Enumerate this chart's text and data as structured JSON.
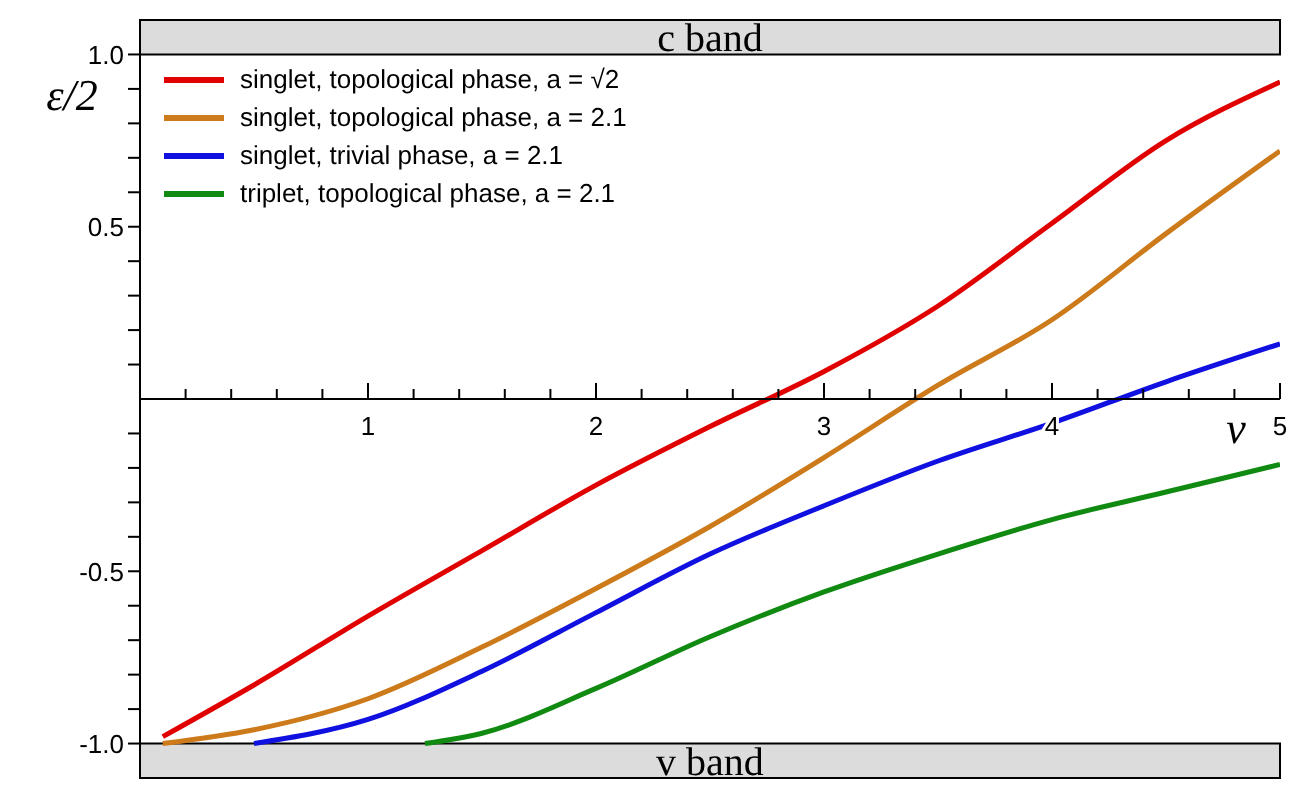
{
  "chart_data": {
    "type": "line",
    "xlabel": "v",
    "ylabel": "ε/2",
    "legend": "top left",
    "marker": "none",
    "line_style": "solid",
    "xlim": [
      0,
      5
    ],
    "ylim": [
      -1.1,
      1.1
    ],
    "xticks": [
      {
        "value": 0.2,
        "label": null
      },
      {
        "value": 0.4,
        "label": null
      },
      {
        "value": 0.6,
        "label": null
      },
      {
        "value": 0.8,
        "label": null
      },
      1,
      {
        "value": 1.2,
        "label": null
      },
      {
        "value": 1.4,
        "label": null
      },
      {
        "value": 1.6,
        "label": null
      },
      {
        "value": 1.8,
        "label": null
      },
      2,
      {
        "value": 2.2,
        "label": null
      },
      {
        "value": 2.4,
        "label": null
      },
      {
        "value": 2.6,
        "label": null
      },
      {
        "value": 2.8,
        "label": null
      },
      3,
      {
        "value": 3.2,
        "label": null
      },
      {
        "value": 3.4,
        "label": null
      },
      {
        "value": 3.6,
        "label": null
      },
      {
        "value": 3.8,
        "label": null
      },
      4,
      {
        "value": 4.2,
        "label": null
      },
      {
        "value": 4.4,
        "label": null
      },
      {
        "value": 4.6,
        "label": null
      },
      {
        "value": 4.8,
        "label": null
      },
      5
    ],
    "yticks": [
      {
        "value": -1,
        "label": "-1.0"
      },
      {
        "value": -0.9,
        "label": null
      },
      {
        "value": -0.8,
        "label": null
      },
      {
        "value": -0.7,
        "label": null
      },
      {
        "value": -0.6,
        "label": null
      },
      -0.5,
      {
        "value": -0.4,
        "label": null
      },
      {
        "value": -0.3,
        "label": null
      },
      {
        "value": -0.2,
        "label": null
      },
      {
        "value": -0.1,
        "label": null
      },
      {
        "value": 0.1,
        "label": null
      },
      {
        "value": 0.2,
        "label": null
      },
      {
        "value": 0.3,
        "label": null
      },
      {
        "value": 0.4,
        "label": null
      },
      0.5,
      {
        "value": 0.6,
        "label": null
      },
      {
        "value": 0.7,
        "label": null
      },
      {
        "value": 0.8,
        "label": null
      },
      {
        "value": 0.9,
        "label": null
      },
      {
        "value": 1,
        "label": "1.0"
      }
    ],
    "bands": [
      {
        "axis": "y",
        "from": 1,
        "to": 1.1,
        "label": "c band",
        "color": "#dcdcdc"
      },
      {
        "axis": "y",
        "from": -1.1,
        "to": -1,
        "label": "v band",
        "color": "#dcdcdc"
      }
    ],
    "series": [
      {
        "name": "singlet, topological phase, a = √2",
        "color": "#e00000",
        "x": [
          0.1,
          0.5,
          1,
          1.5,
          2,
          2.5,
          3,
          3.5,
          4,
          4.5,
          5
        ],
        "values": [
          -0.98,
          -0.83,
          -0.63,
          -0.44,
          -0.25,
          -0.08,
          0.08,
          0.27,
          0.51,
          0.75,
          0.92
        ]
      },
      {
        "name": "singlet, topological phase, a = 2.1",
        "color": "#cc7a1a",
        "x": [
          0.1,
          0.5,
          1,
          1.5,
          2,
          2.5,
          3,
          3.5,
          4,
          4.5,
          5
        ],
        "values": [
          -1,
          -0.96,
          -0.87,
          -0.72,
          -0.55,
          -0.37,
          -0.17,
          0.04,
          0.23,
          0.48,
          0.72
        ]
      },
      {
        "name": "singlet, trivial phase, a = 2.1",
        "color": "#1010e0",
        "x": [
          0.5,
          1,
          1.5,
          2,
          2.5,
          3,
          3.5,
          4,
          4.5,
          5
        ],
        "values": [
          -1,
          -0.93,
          -0.79,
          -0.62,
          -0.45,
          -0.31,
          -0.18,
          -0.07,
          0.05,
          0.16
        ]
      },
      {
        "name": "triplet, topological phase, a = 2.1",
        "color": "#108a10",
        "x": [
          1.25,
          1.5,
          2,
          2.5,
          3,
          3.5,
          4,
          4.5,
          5
        ],
        "values": [
          -1,
          -0.97,
          -0.84,
          -0.69,
          -0.56,
          -0.45,
          -0.35,
          -0.27,
          -0.19
        ]
      }
    ]
  }
}
